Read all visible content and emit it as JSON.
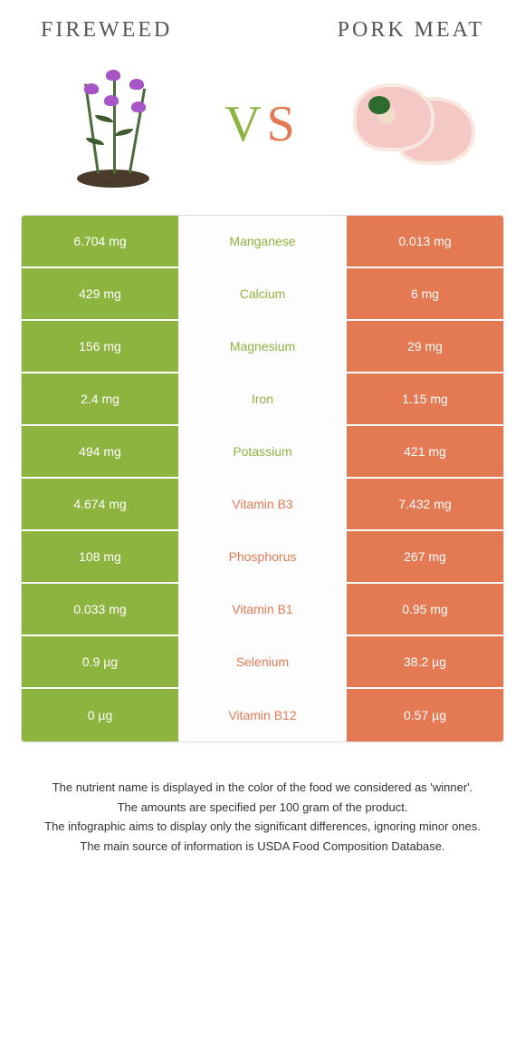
{
  "header": {
    "left_title": "Fireweed",
    "right_title": "Pork meat"
  },
  "vs": {
    "v": "V",
    "s": "S"
  },
  "colors": {
    "green": "#8eb440",
    "orange": "#e47a53"
  },
  "rows": [
    {
      "left": "6.704 mg",
      "name": "Manganese",
      "right": "0.013 mg",
      "winner": "green"
    },
    {
      "left": "429 mg",
      "name": "Calcium",
      "right": "6 mg",
      "winner": "green"
    },
    {
      "left": "156 mg",
      "name": "Magnesium",
      "right": "29 mg",
      "winner": "green"
    },
    {
      "left": "2.4 mg",
      "name": "Iron",
      "right": "1.15 mg",
      "winner": "green"
    },
    {
      "left": "494 mg",
      "name": "Potassium",
      "right": "421 mg",
      "winner": "green"
    },
    {
      "left": "4.674 mg",
      "name": "Vitamin B3",
      "right": "7.432 mg",
      "winner": "orange"
    },
    {
      "left": "108 mg",
      "name": "Phosphorus",
      "right": "267 mg",
      "winner": "orange"
    },
    {
      "left": "0.033 mg",
      "name": "Vitamin B1",
      "right": "0.95 mg",
      "winner": "orange"
    },
    {
      "left": "0.9 µg",
      "name": "Selenium",
      "right": "38.2 µg",
      "winner": "orange"
    },
    {
      "left": "0 µg",
      "name": "Vitamin B12",
      "right": "0.57 µg",
      "winner": "orange"
    }
  ],
  "footer": {
    "line1": "The nutrient name is displayed in the color of the food we considered as 'winner'.",
    "line2": "The amounts are specified per 100 gram of the product.",
    "line3": "The infographic aims to display only the significant differences, ignoring minor ones.",
    "line4": "The main source of information is USDA Food Composition Database."
  }
}
